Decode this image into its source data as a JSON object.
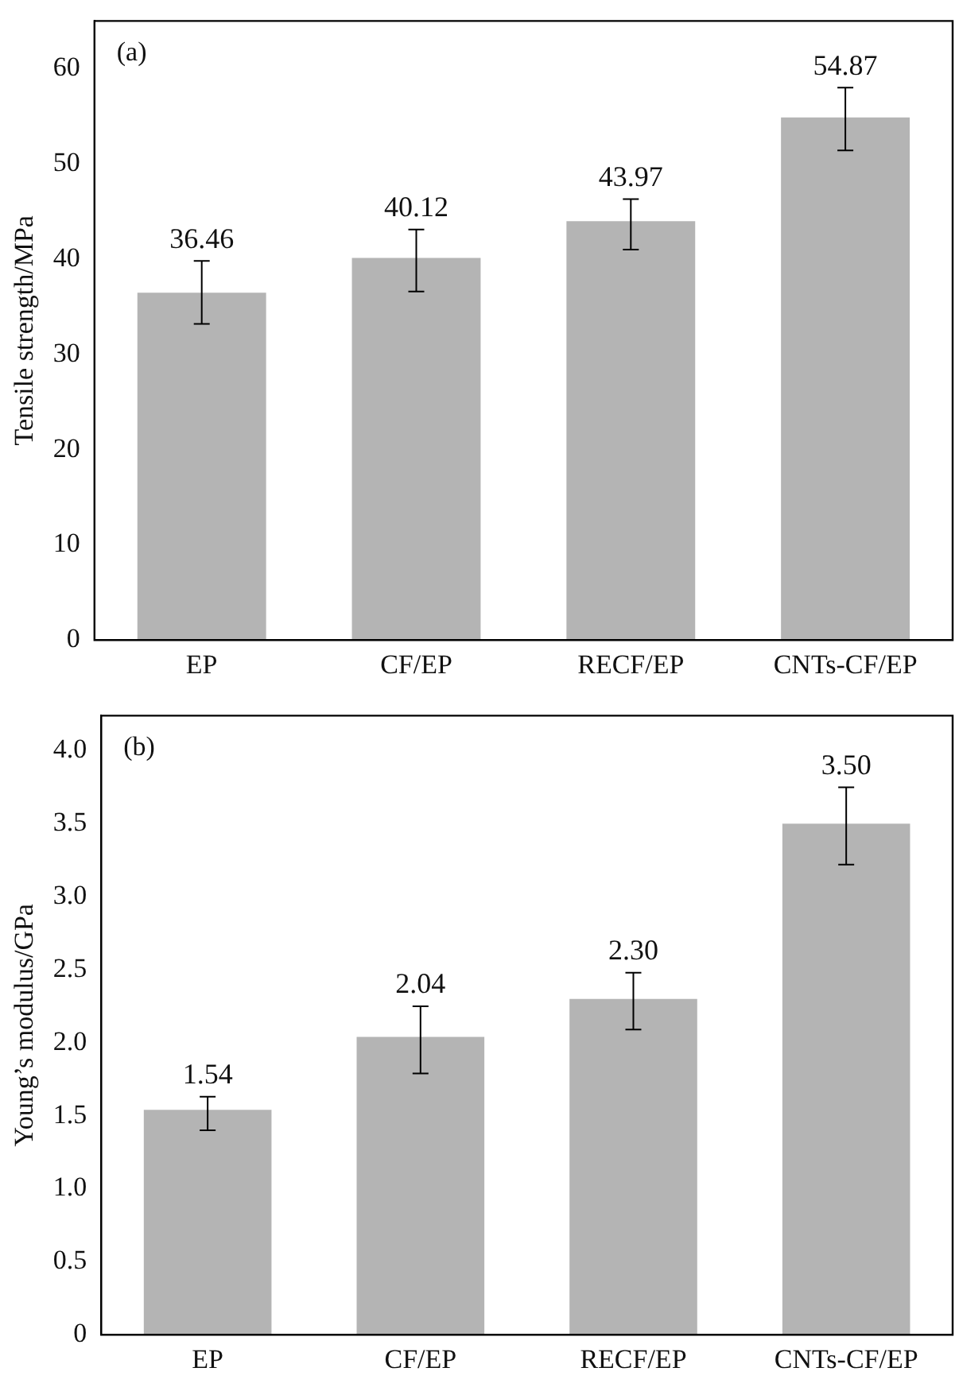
{
  "chart_data": [
    {
      "type": "bar",
      "title": "(a)",
      "ylabel": "Tensile strength/MPa",
      "categories": [
        "EP",
        "CF/EP",
        "RECF/EP",
        "CNTs-CF/EP"
      ],
      "values": [
        36.46,
        40.12,
        43.97,
        54.87
      ],
      "color": "#b4b4b4",
      "errors": [
        [
          33.2,
          39.8
        ],
        [
          36.6,
          43.1
        ],
        [
          41.0,
          46.3
        ],
        [
          51.4,
          58.0
        ]
      ],
      "data_labels": true,
      "ylim": [
        0,
        65
      ],
      "yticks": [
        0,
        10,
        20,
        30,
        40,
        50,
        60
      ],
      "grid": false,
      "legend": false
    },
    {
      "type": "bar",
      "title": "(b)",
      "ylabel": "Young’s modulus/GPa",
      "categories": [
        "EP",
        "CF/EP",
        "RECF/EP",
        "CNTs-CF/EP"
      ],
      "values": [
        1.54,
        2.04,
        2.3,
        3.5
      ],
      "value_labels": [
        "1.54",
        "2.04",
        "2.30",
        "3.50"
      ],
      "color": "#b4b4b4",
      "errors": [
        [
          1.4,
          1.63
        ],
        [
          1.79,
          2.25
        ],
        [
          2.09,
          2.48
        ],
        [
          3.22,
          3.75
        ]
      ],
      "ylim": [
        0,
        4.24
      ],
      "yticks": [
        {
          "value": 0,
          "label": "0"
        },
        {
          "value": 0.5,
          "label": "0.5"
        },
        {
          "value": 1,
          "label": "1.0"
        },
        {
          "value": 1.5,
          "label": "1.5"
        },
        {
          "value": 2,
          "label": "2.0"
        },
        {
          "value": 2.5,
          "label": "2.5"
        },
        {
          "value": 3,
          "label": "3.0"
        },
        {
          "value": 3.5,
          "label": "3.5"
        },
        {
          "value": 4,
          "label": "4.0"
        }
      ],
      "grid": false,
      "legend": false
    }
  ]
}
